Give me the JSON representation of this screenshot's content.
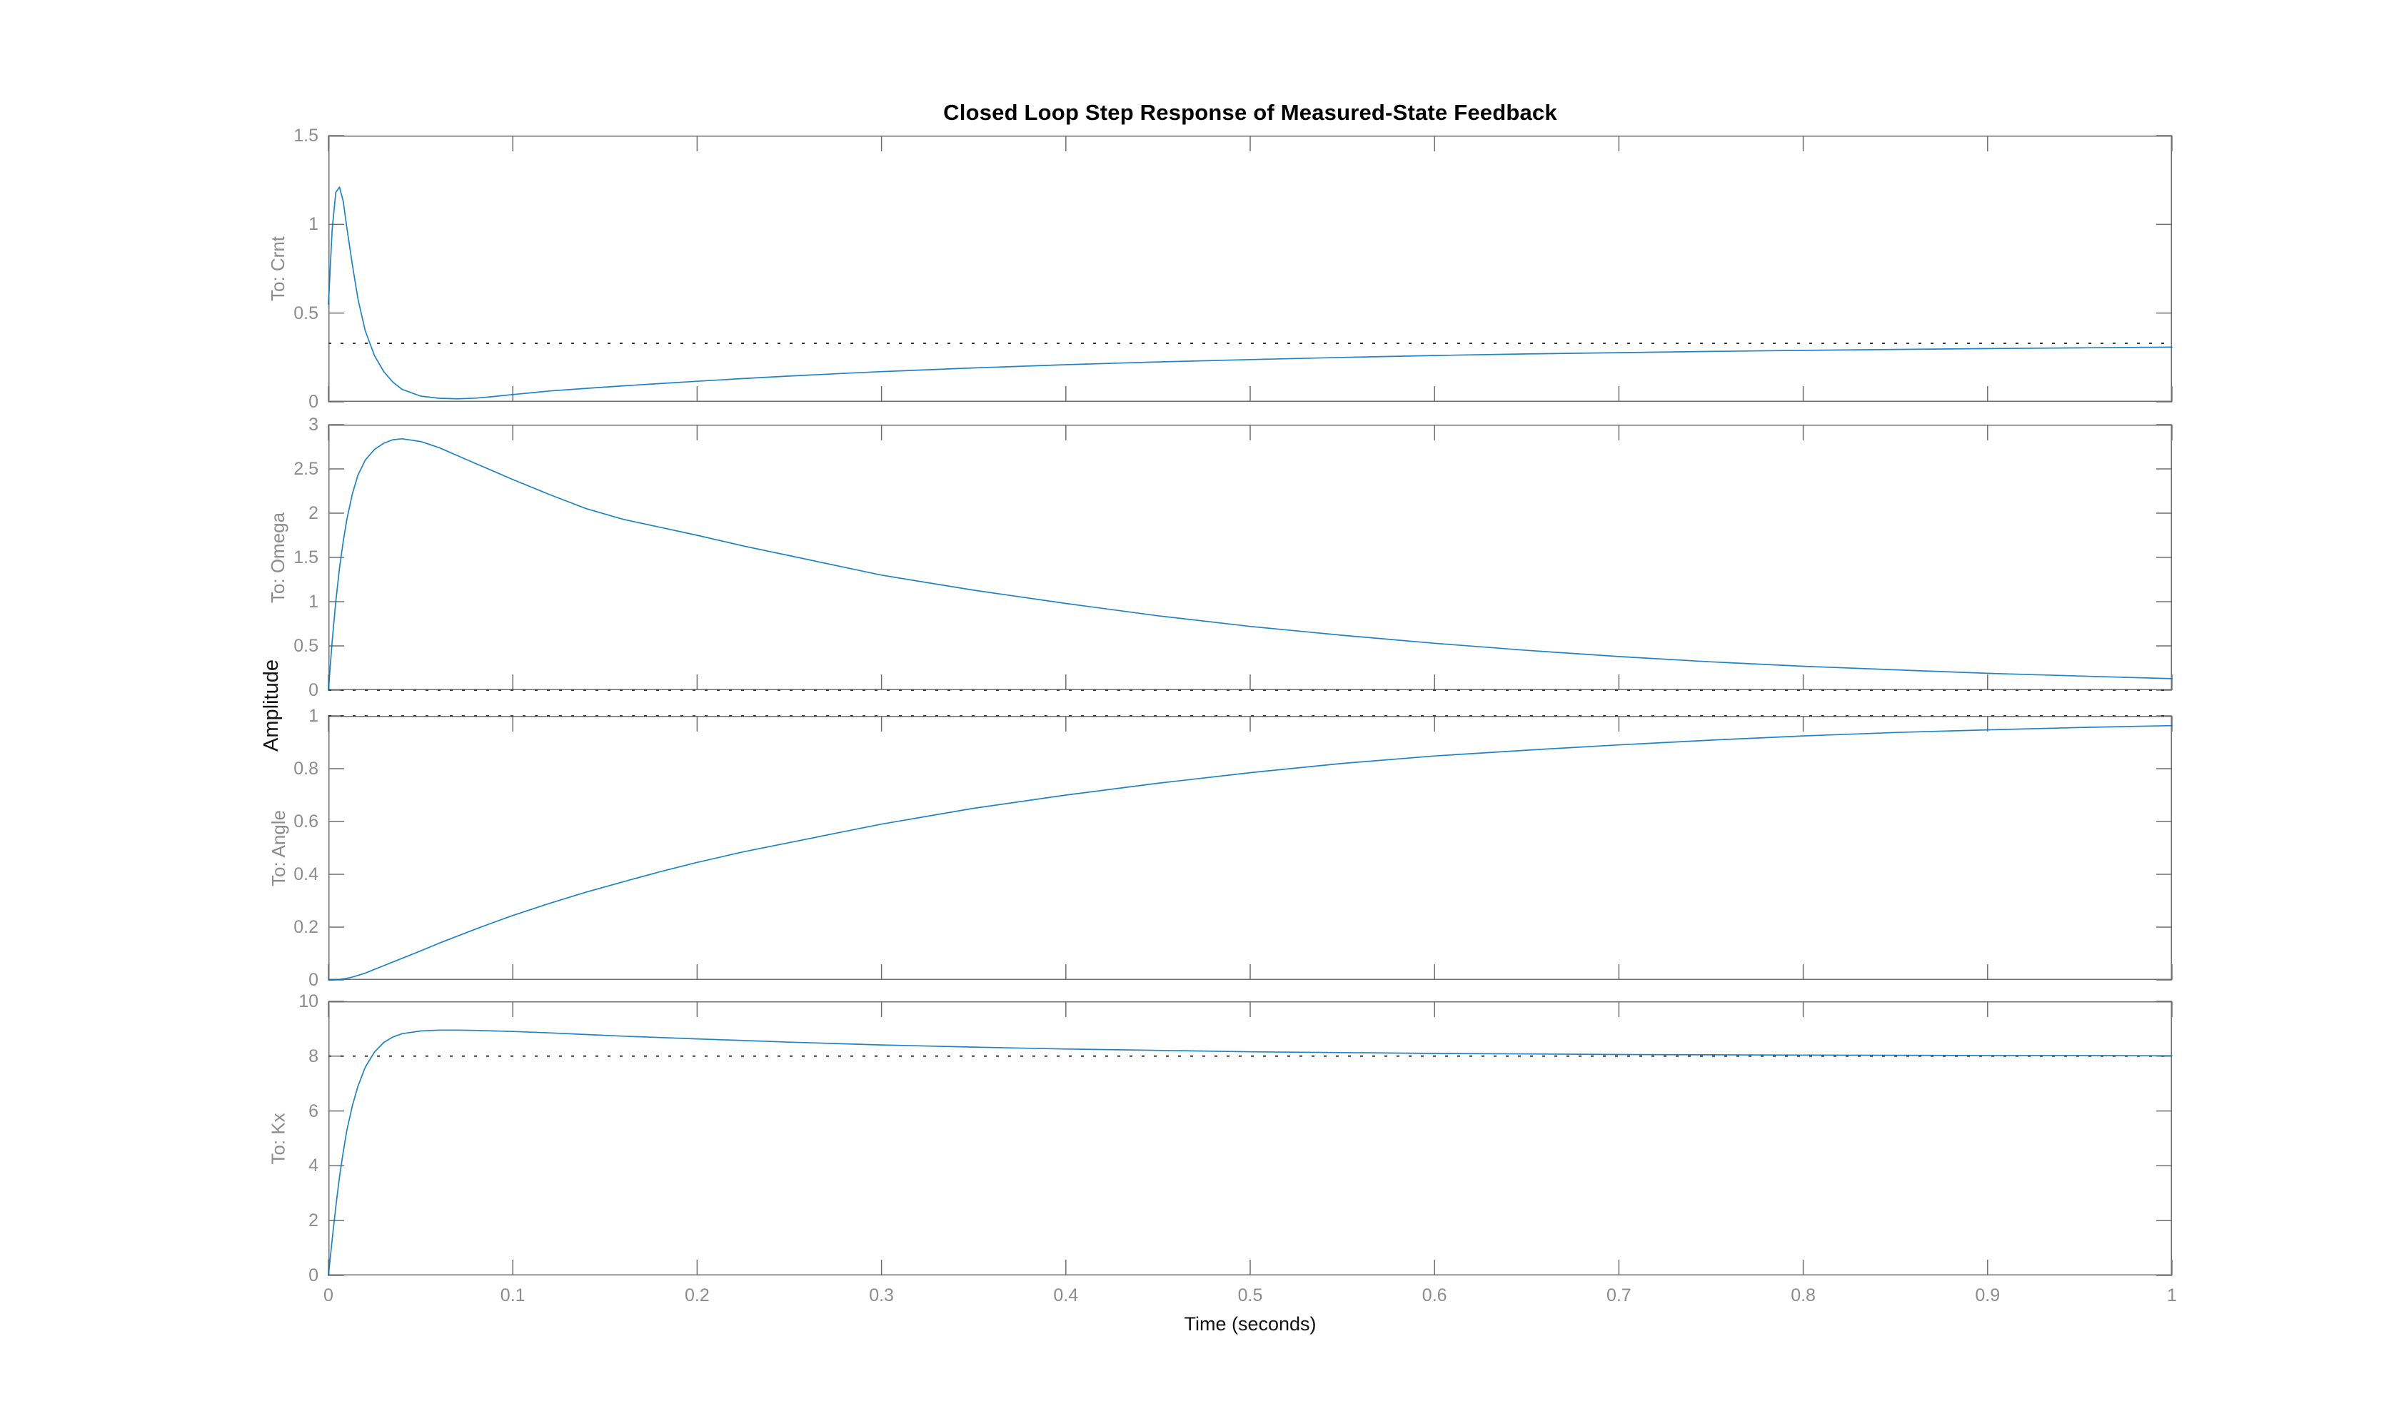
{
  "figure": {
    "title": "Closed Loop Step Response of Measured-State Feedback",
    "xlabel": "Time (seconds)",
    "shared_ylabel": "Amplitude",
    "background_color": "#ffffff",
    "line_color": "#0072BD",
    "axis_color": "#6e6e6e",
    "tick_label_color": "#8c8c8c",
    "steady_state_line_color": "#3a3a3a",
    "legend": "none",
    "grid": "off"
  },
  "x_axis": {
    "xlim": [
      0,
      1
    ],
    "xticks": [
      0,
      0.1,
      0.2,
      0.3,
      0.4,
      0.5,
      0.6,
      0.7,
      0.8,
      0.9,
      1
    ],
    "xtick_labels": [
      "0",
      "0.1",
      "0.2",
      "0.3",
      "0.4",
      "0.5",
      "0.6",
      "0.7",
      "0.8",
      "0.9",
      "1"
    ]
  },
  "chart_data": [
    {
      "type": "line",
      "ylabel": "To: Crnt",
      "ylim": [
        0,
        1.5
      ],
      "yticks": [
        0,
        0.5,
        1,
        1.5
      ],
      "ytick_labels": [
        "0",
        "0.5",
        "1",
        "1.5"
      ],
      "steady_state": 0.33,
      "x": [
        0,
        0.002,
        0.004,
        0.006,
        0.008,
        0.01,
        0.013,
        0.016,
        0.02,
        0.025,
        0.03,
        0.035,
        0.04,
        0.05,
        0.06,
        0.07,
        0.08,
        0.09,
        0.1,
        0.12,
        0.14,
        0.16,
        0.18,
        0.2,
        0.225,
        0.25,
        0.275,
        0.3,
        0.35,
        0.4,
        0.45,
        0.5,
        0.55,
        0.6,
        0.65,
        0.7,
        0.75,
        0.8,
        0.85,
        0.9,
        0.95,
        1.0
      ],
      "y": [
        0.55,
        0.97,
        1.18,
        1.21,
        1.13,
        0.98,
        0.77,
        0.58,
        0.4,
        0.26,
        0.17,
        0.11,
        0.07,
        0.032,
        0.02,
        0.017,
        0.021,
        0.03,
        0.041,
        0.061,
        0.076,
        0.09,
        0.103,
        0.116,
        0.131,
        0.145,
        0.158,
        0.17,
        0.191,
        0.209,
        0.225,
        0.238,
        0.25,
        0.261,
        0.27,
        0.277,
        0.284,
        0.29,
        0.295,
        0.3,
        0.304,
        0.308
      ]
    },
    {
      "type": "line",
      "ylabel": "To: Omega",
      "ylim": [
        0,
        3
      ],
      "yticks": [
        0,
        0.5,
        1,
        1.5,
        2,
        2.5,
        3
      ],
      "ytick_labels": [
        "0",
        "0.5",
        "1",
        "1.5",
        "2",
        "2.5",
        "3"
      ],
      "steady_state": 0,
      "x": [
        0,
        0.002,
        0.004,
        0.006,
        0.008,
        0.01,
        0.013,
        0.016,
        0.02,
        0.025,
        0.03,
        0.035,
        0.04,
        0.05,
        0.06,
        0.07,
        0.08,
        0.09,
        0.1,
        0.12,
        0.14,
        0.16,
        0.18,
        0.2,
        0.225,
        0.25,
        0.275,
        0.3,
        0.35,
        0.4,
        0.45,
        0.5,
        0.55,
        0.6,
        0.65,
        0.7,
        0.75,
        0.8,
        0.85,
        0.9,
        0.95,
        1.0
      ],
      "y": [
        0,
        0.55,
        1.0,
        1.38,
        1.68,
        1.93,
        2.22,
        2.43,
        2.6,
        2.72,
        2.79,
        2.83,
        2.84,
        2.81,
        2.74,
        2.65,
        2.56,
        2.47,
        2.38,
        2.21,
        2.05,
        1.93,
        1.84,
        1.75,
        1.63,
        1.52,
        1.41,
        1.3,
        1.13,
        0.98,
        0.84,
        0.72,
        0.62,
        0.53,
        0.45,
        0.38,
        0.32,
        0.27,
        0.23,
        0.19,
        0.16,
        0.13
      ]
    },
    {
      "type": "line",
      "ylabel": "To: Angle",
      "ylim": [
        0,
        1
      ],
      "yticks": [
        0,
        0.2,
        0.4,
        0.6,
        0.8,
        1
      ],
      "ytick_labels": [
        "0",
        "0.2",
        "0.4",
        "0.6",
        "0.8",
        "1"
      ],
      "steady_state": 1,
      "x": [
        0,
        0.002,
        0.004,
        0.006,
        0.008,
        0.01,
        0.013,
        0.016,
        0.02,
        0.025,
        0.03,
        0.035,
        0.04,
        0.05,
        0.06,
        0.07,
        0.08,
        0.09,
        0.1,
        0.12,
        0.14,
        0.16,
        0.18,
        0.2,
        0.225,
        0.25,
        0.275,
        0.3,
        0.35,
        0.4,
        0.45,
        0.5,
        0.55,
        0.6,
        0.65,
        0.7,
        0.75,
        0.8,
        0.85,
        0.9,
        0.95,
        1.0
      ],
      "y": [
        0,
        0,
        0.001,
        0.002,
        0.004,
        0.006,
        0.011,
        0.017,
        0.026,
        0.04,
        0.054,
        0.068,
        0.082,
        0.11,
        0.139,
        0.166,
        0.193,
        0.219,
        0.244,
        0.29,
        0.333,
        0.372,
        0.41,
        0.445,
        0.485,
        0.52,
        0.555,
        0.59,
        0.65,
        0.7,
        0.745,
        0.785,
        0.82,
        0.848,
        0.87,
        0.89,
        0.908,
        0.924,
        0.937,
        0.947,
        0.956,
        0.963
      ]
    },
    {
      "type": "line",
      "ylabel": "To: Kx",
      "ylim": [
        0,
        10
      ],
      "yticks": [
        0,
        2,
        4,
        6,
        8,
        10
      ],
      "ytick_labels": [
        "0",
        "2",
        "4",
        "6",
        "8",
        "10"
      ],
      "steady_state": 8,
      "x": [
        0,
        0.002,
        0.004,
        0.006,
        0.008,
        0.01,
        0.013,
        0.016,
        0.02,
        0.025,
        0.03,
        0.035,
        0.04,
        0.05,
        0.06,
        0.07,
        0.08,
        0.09,
        0.1,
        0.12,
        0.14,
        0.16,
        0.18,
        0.2,
        0.225,
        0.25,
        0.275,
        0.3,
        0.35,
        0.4,
        0.45,
        0.5,
        0.55,
        0.6,
        0.65,
        0.7,
        0.75,
        0.8,
        0.85,
        0.9,
        0.95,
        1.0
      ],
      "y": [
        0,
        1.3,
        2.5,
        3.6,
        4.5,
        5.3,
        6.2,
        6.9,
        7.6,
        8.15,
        8.5,
        8.7,
        8.82,
        8.92,
        8.95,
        8.95,
        8.94,
        8.92,
        8.9,
        8.85,
        8.79,
        8.73,
        8.68,
        8.63,
        8.57,
        8.51,
        8.46,
        8.41,
        8.33,
        8.26,
        8.21,
        8.16,
        8.13,
        8.1,
        8.08,
        8.06,
        8.05,
        8.04,
        8.03,
        8.02,
        8.02,
        8.01
      ]
    }
  ]
}
